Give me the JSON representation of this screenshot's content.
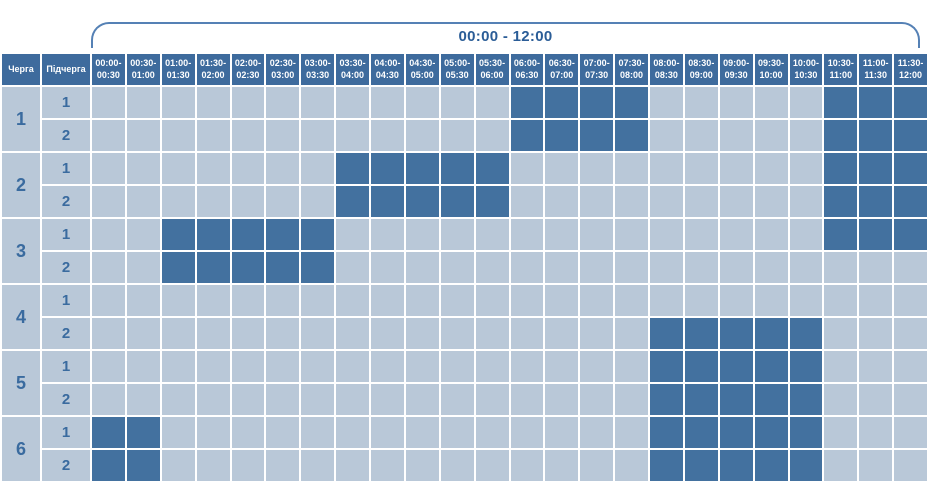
{
  "chart_data": {
    "type": "heatmap",
    "title": "00:00 - 12:00",
    "row_header_labels": [
      "Черга",
      "Підчерга"
    ],
    "time_slots": [
      "00:00-\n00:30",
      "00:30-\n01:00",
      "01:00-\n01:30",
      "01:30-\n02:00",
      "02:00-\n02:30",
      "02:30-\n03:00",
      "03:00-\n03:30",
      "03:30-\n04:00",
      "04:00-\n04:30",
      "04:30-\n05:00",
      "05:00-\n05:30",
      "05:30-\n06:00",
      "06:00-\n06:30",
      "06:30-\n07:00",
      "07:00-\n07:30",
      "07:30-\n08:00",
      "08:00-\n08:30",
      "08:30-\n09:00",
      "09:00-\n09:30",
      "09:30-\n10:00",
      "10:00-\n10:30",
      "10:30-\n11:00",
      "11:00-\n11:30",
      "11:30-\n12:00"
    ],
    "queues": [
      {
        "queue": "1",
        "subqueues": [
          {
            "label": "1",
            "on_slots": [
              12,
              13,
              14,
              15,
              21,
              22,
              23
            ]
          },
          {
            "label": "2",
            "on_slots": [
              12,
              13,
              14,
              15,
              21,
              22,
              23
            ]
          }
        ]
      },
      {
        "queue": "2",
        "subqueues": [
          {
            "label": "1",
            "on_slots": [
              7,
              8,
              9,
              10,
              11,
              21,
              22,
              23
            ]
          },
          {
            "label": "2",
            "on_slots": [
              7,
              8,
              9,
              10,
              11,
              21,
              22,
              23
            ]
          }
        ]
      },
      {
        "queue": "3",
        "subqueues": [
          {
            "label": "1",
            "on_slots": [
              2,
              3,
              4,
              5,
              6,
              21,
              22,
              23
            ]
          },
          {
            "label": "2",
            "on_slots": [
              2,
              3,
              4,
              5,
              6
            ]
          }
        ]
      },
      {
        "queue": "4",
        "subqueues": [
          {
            "label": "1",
            "on_slots": []
          },
          {
            "label": "2",
            "on_slots": [
              16,
              17,
              18,
              19,
              20
            ]
          }
        ]
      },
      {
        "queue": "5",
        "subqueues": [
          {
            "label": "1",
            "on_slots": [
              16,
              17,
              18,
              19,
              20
            ]
          },
          {
            "label": "2",
            "on_slots": [
              16,
              17,
              18,
              19,
              20
            ]
          }
        ]
      },
      {
        "queue": "6",
        "subqueues": [
          {
            "label": "1",
            "on_slots": [
              0,
              1,
              16,
              17,
              18,
              19,
              20
            ]
          },
          {
            "label": "2",
            "on_slots": [
              0,
              1,
              16,
              17,
              18,
              19,
              20
            ]
          }
        ]
      }
    ],
    "colors": {
      "header_bg": "#3e6b9d",
      "cell_on": "#43719f",
      "cell_off": "#b9c8d8",
      "header_text": "#ffffff",
      "number_text": "#3a6b9f",
      "bracket_line": "#5581b5",
      "title_color": "#2b5d97"
    },
    "legend_position": "none",
    "grid": true
  }
}
